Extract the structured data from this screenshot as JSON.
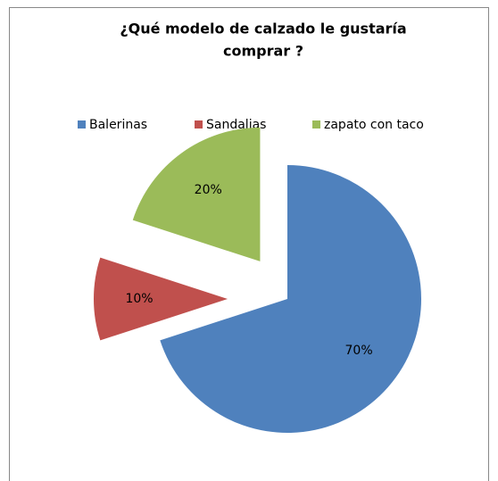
{
  "chart_data": {
    "type": "pie",
    "title_lines": [
      "¿Qué modelo de calzado le gustaría",
      "comprar ?"
    ],
    "categories": [
      "Balerinas",
      "Sandalias",
      "zapato con taco"
    ],
    "values": [
      70,
      10,
      20
    ],
    "value_labels": [
      "70%",
      "10%",
      "20%"
    ],
    "colors": [
      "#4f81bd",
      "#c0504d",
      "#9bbb59"
    ],
    "legend": "top"
  }
}
